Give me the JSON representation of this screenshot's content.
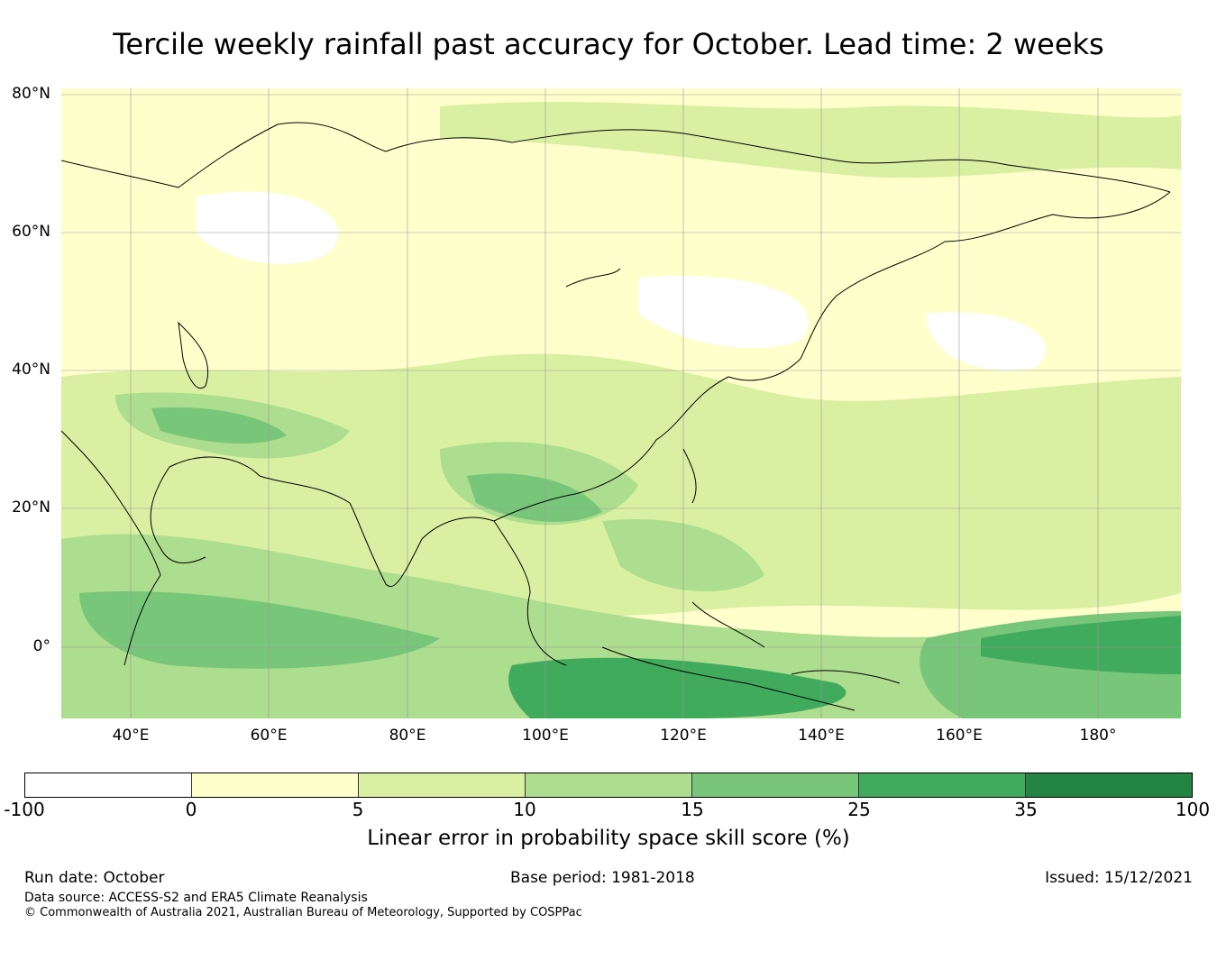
{
  "title": "Tercile weekly rainfall past accuracy for October. Lead time: 2 weeks",
  "map": {
    "lat_ticks": [
      "80°N",
      "60°N",
      "40°N",
      "20°N",
      "0°"
    ],
    "lon_ticks": [
      "40°E",
      "60°E",
      "80°E",
      "100°E",
      "120°E",
      "140°E",
      "160°E",
      "180°"
    ]
  },
  "colorbar": {
    "ticks": [
      "-100",
      "0",
      "5",
      "10",
      "15",
      "25",
      "35",
      "100"
    ],
    "colors": [
      "#ffffff",
      "#ffffcc",
      "#d9f0a3",
      "#addd8e",
      "#78c679",
      "#41ab5d",
      "#238443"
    ],
    "label": "Linear error in probability space skill score (%)"
  },
  "footer": {
    "run_date": "Run date: October",
    "base_period": "Base period: 1981-2018",
    "issued": "Issued: 15/12/2021",
    "data_source": "Data source: ACCESS-S2 and ERA5 Climate Reanalysis",
    "copyright": "© Commonwealth of Australia 2021, Australian Bureau of Meteorology, Supported by COSPPac"
  }
}
